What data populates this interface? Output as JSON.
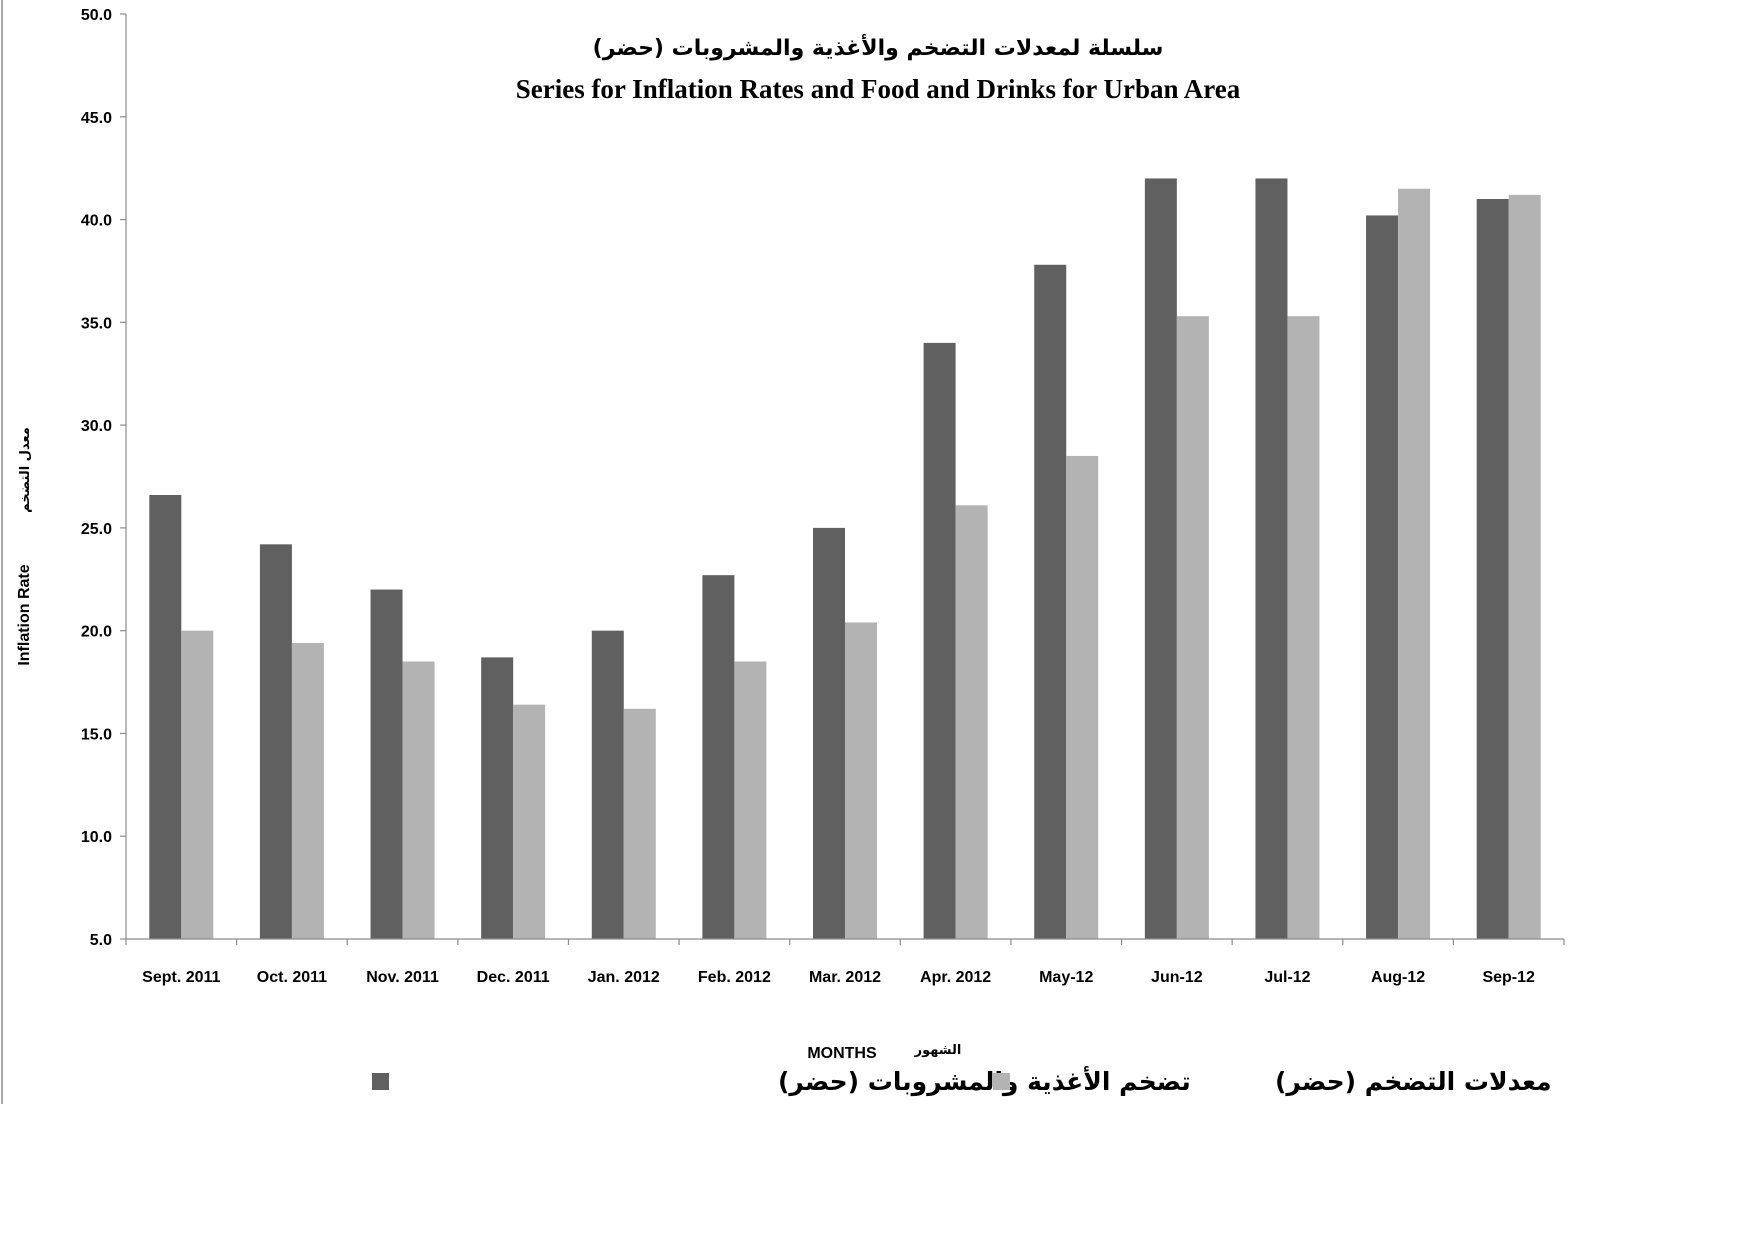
{
  "chart_data": {
    "type": "bar",
    "title_ar": "سلسلة لمعدلات التضخم والأغذية والمشروبات (حضر)",
    "title": "Series for Inflation Rates and Food and Drinks for Urban Area",
    "xlabel": "MONTHS",
    "xlabel_ar": "الشهور",
    "ylabel": "Inflation Rate",
    "ylabel_ar": "معدل التضخم",
    "ylim": [
      5,
      50
    ],
    "yticks": [
      "5.0",
      "10.0",
      "15.0",
      "20.0",
      "25.0",
      "30.0",
      "35.0",
      "40.0",
      "45.0",
      "50.0"
    ],
    "categories": [
      "Sept. 2011",
      "Oct. 2011",
      "Nov. 2011",
      "Dec. 2011",
      "Jan. 2012",
      "Feb. 2012",
      "Mar. 2012",
      "Apr. 2012",
      "May-12",
      "Jun-12",
      "Jul-12",
      "Aug-12",
      "Sep-12"
    ],
    "series": [
      {
        "name": "تضخم الأغذية والمشروبات (حضر)",
        "color": "#606060",
        "values": [
          26.6,
          24.2,
          22.0,
          18.7,
          20.0,
          22.7,
          25.0,
          34.0,
          37.8,
          42.0,
          42.0,
          40.2,
          41.0
        ]
      },
      {
        "name": "معدلات التضخم (حضر)",
        "color": "#b3b3b3",
        "values": [
          20.0,
          19.4,
          18.5,
          16.4,
          16.2,
          18.5,
          20.4,
          26.1,
          28.5,
          35.3,
          35.3,
          41.5,
          41.2
        ]
      }
    ],
    "grid": false,
    "legend_position": "bottom"
  }
}
